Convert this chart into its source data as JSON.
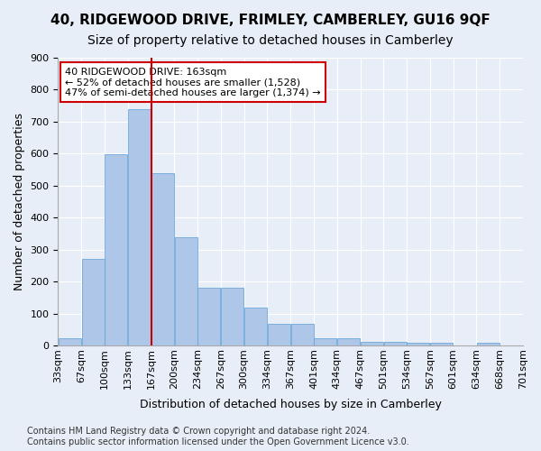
{
  "title": "40, RIDGEWOOD DRIVE, FRIMLEY, CAMBERLEY, GU16 9QF",
  "subtitle": "Size of property relative to detached houses in Camberley",
  "xlabel": "Distribution of detached houses by size in Camberley",
  "ylabel": "Number of detached properties",
  "bar_values": [
    22,
    272,
    597,
    738,
    538,
    338,
    180,
    180,
    118,
    68,
    68,
    22,
    22,
    12,
    12,
    8,
    8,
    0,
    8,
    0
  ],
  "categories": [
    "33sqm",
    "67sqm",
    "100sqm",
    "133sqm",
    "167sqm",
    "200sqm",
    "234sqm",
    "267sqm",
    "300sqm",
    "334sqm",
    "367sqm",
    "401sqm",
    "434sqm",
    "467sqm",
    "501sqm",
    "534sqm",
    "567sqm",
    "601sqm",
    "634sqm",
    "668sqm",
    "701sqm"
  ],
  "bar_color": "#aec6e8",
  "bar_edge_color": "#5a9fd4",
  "vline_x_index": 4,
  "vline_label": "163sqm",
  "vline_color": "#cc0000",
  "annotation_text": "40 RIDGEWOOD DRIVE: 163sqm\n← 52% of detached houses are smaller (1,528)\n47% of semi-detached houses are larger (1,374) →",
  "annotation_box_color": "#ffffff",
  "annotation_box_edge_color": "#cc0000",
  "ylim": [
    0,
    900
  ],
  "yticks": [
    0,
    100,
    200,
    300,
    400,
    500,
    600,
    700,
    800,
    900
  ],
  "bg_color": "#e8eef7",
  "plot_bg_color": "#e8eef7",
  "grid_color": "#ffffff",
  "footer_text": "Contains HM Land Registry data © Crown copyright and database right 2024.\nContains public sector information licensed under the Open Government Licence v3.0.",
  "title_fontsize": 11,
  "subtitle_fontsize": 10,
  "xlabel_fontsize": 9,
  "ylabel_fontsize": 9,
  "tick_fontsize": 8,
  "annotation_fontsize": 8,
  "footer_fontsize": 7
}
